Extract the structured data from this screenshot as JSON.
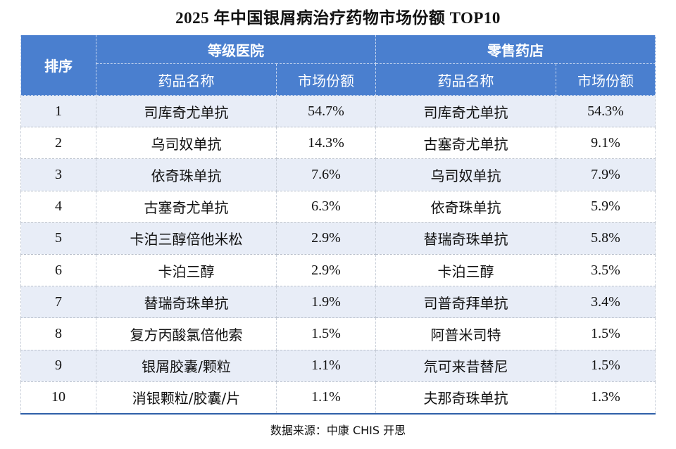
{
  "title": "2025 年中国银屑病治疗药物市场份额 TOP10",
  "table": {
    "rank_header": "排序",
    "group_hospital": "等级医院",
    "group_retail": "零售药店",
    "sub_headers": {
      "hospital_name": "药品名称",
      "hospital_share": "市场份额",
      "retail_name": "药品名称",
      "retail_share": "市场份额"
    },
    "rows": [
      {
        "rank": "1",
        "hospital_name": "司库奇尤单抗",
        "hospital_share": "54.7%",
        "retail_name": "司库奇尤单抗",
        "retail_share": "54.3%"
      },
      {
        "rank": "2",
        "hospital_name": "乌司奴单抗",
        "hospital_share": "14.3%",
        "retail_name": "古塞奇尤单抗",
        "retail_share": "9.1%"
      },
      {
        "rank": "3",
        "hospital_name": "依奇珠单抗",
        "hospital_share": "7.6%",
        "retail_name": "乌司奴单抗",
        "retail_share": "7.9%"
      },
      {
        "rank": "4",
        "hospital_name": "古塞奇尤单抗",
        "hospital_share": "6.3%",
        "retail_name": "依奇珠单抗",
        "retail_share": "5.9%"
      },
      {
        "rank": "5",
        "hospital_name": "卡泊三醇倍他米松",
        "hospital_share": "2.9%",
        "retail_name": "替瑞奇珠单抗",
        "retail_share": "5.8%"
      },
      {
        "rank": "6",
        "hospital_name": "卡泊三醇",
        "hospital_share": "2.9%",
        "retail_name": "卡泊三醇",
        "retail_share": "3.5%"
      },
      {
        "rank": "7",
        "hospital_name": "替瑞奇珠单抗",
        "hospital_share": "1.9%",
        "retail_name": "司普奇拜单抗",
        "retail_share": "3.4%"
      },
      {
        "rank": "8",
        "hospital_name": "复方丙酸氯倍他索",
        "hospital_share": "1.5%",
        "retail_name": "阿普米司特",
        "retail_share": "1.5%"
      },
      {
        "rank": "9",
        "hospital_name": "银屑胶囊/颗粒",
        "hospital_share": "1.1%",
        "retail_name": "氘可来昔替尼",
        "retail_share": "1.5%"
      },
      {
        "rank": "10",
        "hospital_name": "消银颗粒/胶囊/片",
        "hospital_share": "1.1%",
        "retail_name": "夫那奇珠单抗",
        "retail_share": "1.3%"
      }
    ]
  },
  "source": "数据来源：中康 CHIS 开思",
  "colors": {
    "header_bg": "#4a7fcf",
    "header_text": "#ffffff",
    "stripe_bg": "#e8edf7",
    "bottom_rule": "#2f5fa8"
  }
}
